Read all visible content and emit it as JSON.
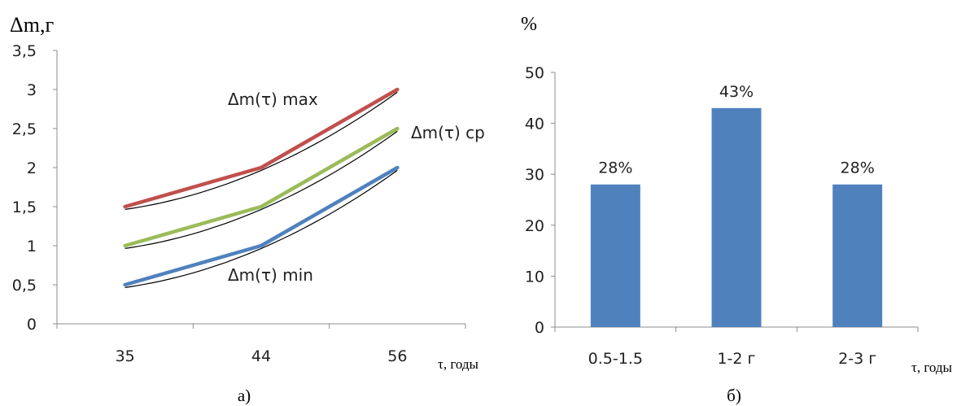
{
  "chart_data": [
    {
      "type": "line",
      "panel_label": "а)",
      "y_axis_label": "Δm,г",
      "x_axis_label": "τ, годы",
      "categories": [
        "35",
        "44",
        "56"
      ],
      "ylim": [
        0,
        3.5
      ],
      "y_ticks": [
        "0",
        "0,5",
        "1",
        "1,5",
        "2",
        "2,5",
        "3",
        "3,5"
      ],
      "grid": false,
      "series": [
        {
          "name": "Δm(τ) max",
          "values": [
            1.5,
            2.0,
            3.0
          ],
          "color": "#C0504D"
        },
        {
          "name": "Δm(τ) ср",
          "values": [
            1.0,
            1.5,
            2.5
          ],
          "color": "#9BBB59"
        },
        {
          "name": "Δm(τ) min",
          "values": [
            0.5,
            1.0,
            2.0
          ],
          "color": "#4F81BD"
        }
      ],
      "trendline_color": "#000000"
    },
    {
      "type": "bar",
      "panel_label": "б)",
      "y_axis_label": "%",
      "x_axis_label": "τ, годы",
      "categories": [
        "0.5-1.5",
        "1-2 г",
        "2-3 г"
      ],
      "values": [
        28,
        43,
        28
      ],
      "data_labels": [
        "28%",
        "43%",
        "28%"
      ],
      "ylim": [
        0,
        50
      ],
      "y_ticks": [
        "0",
        "10",
        "20",
        "30",
        "40",
        "50"
      ],
      "grid": false,
      "bar_color": "#4F81BD"
    }
  ]
}
